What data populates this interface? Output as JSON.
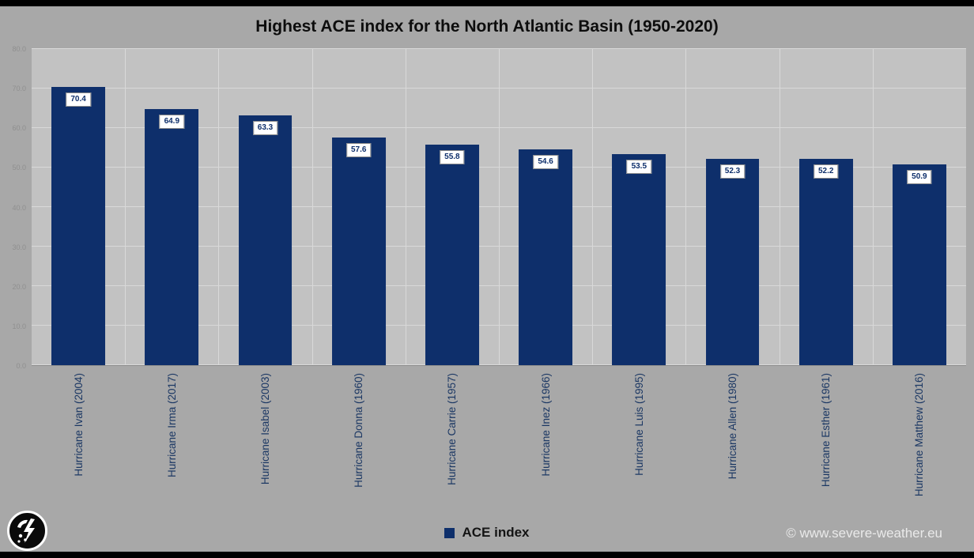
{
  "chart_data": {
    "type": "bar",
    "title": "Highest ACE index for the North Atlantic Basin (1950-2020)",
    "categories": [
      "Hurricane Ivan (2004)",
      "Hurricane Irma (2017)",
      "Hurricane Isabel (2003)",
      "Hurricane Donna (1960)",
      "Hurricane Carrie (1957)",
      "Hurricane Inez (1966)",
      "Hurricane Luis (1995)",
      "Hurricane Allen (1980)",
      "Hurricane Esther (1961)",
      "Hurricane Matthew (2016)"
    ],
    "values": [
      70.4,
      64.9,
      63.3,
      57.6,
      55.8,
      54.6,
      53.5,
      52.3,
      52.2,
      50.9
    ],
    "value_labels": [
      "70.4",
      "64.9",
      "63.3",
      "57.6",
      "55.8",
      "54.6",
      "53.5",
      "52.3",
      "52.2",
      "50.9"
    ],
    "series_name": "ACE index",
    "xlabel": "",
    "ylabel": "",
    "ylim": [
      0,
      80
    ],
    "ytick_step": 10,
    "ytick_labels": [
      "0.0",
      "10.0",
      "20.0",
      "30.0",
      "40.0",
      "50.0",
      "60.0",
      "70.0",
      "80.0"
    ],
    "grid": true,
    "legend_position": "bottom",
    "bar_color": "#0e2f6b"
  },
  "legend": {
    "label": "ACE index"
  },
  "footer": {
    "watermark": "© www.severe-weather.eu"
  },
  "colors": {
    "background": "#a8a8a8",
    "plot_background": "#c2c2c2",
    "gridline": "#d9d9d9",
    "bar": "#0e2f6b",
    "title_text": "#0d0d0d",
    "axis_tick_text": "#8f8f8f",
    "category_text": "#1c3864",
    "watermark_text": "#e9e9e9"
  }
}
